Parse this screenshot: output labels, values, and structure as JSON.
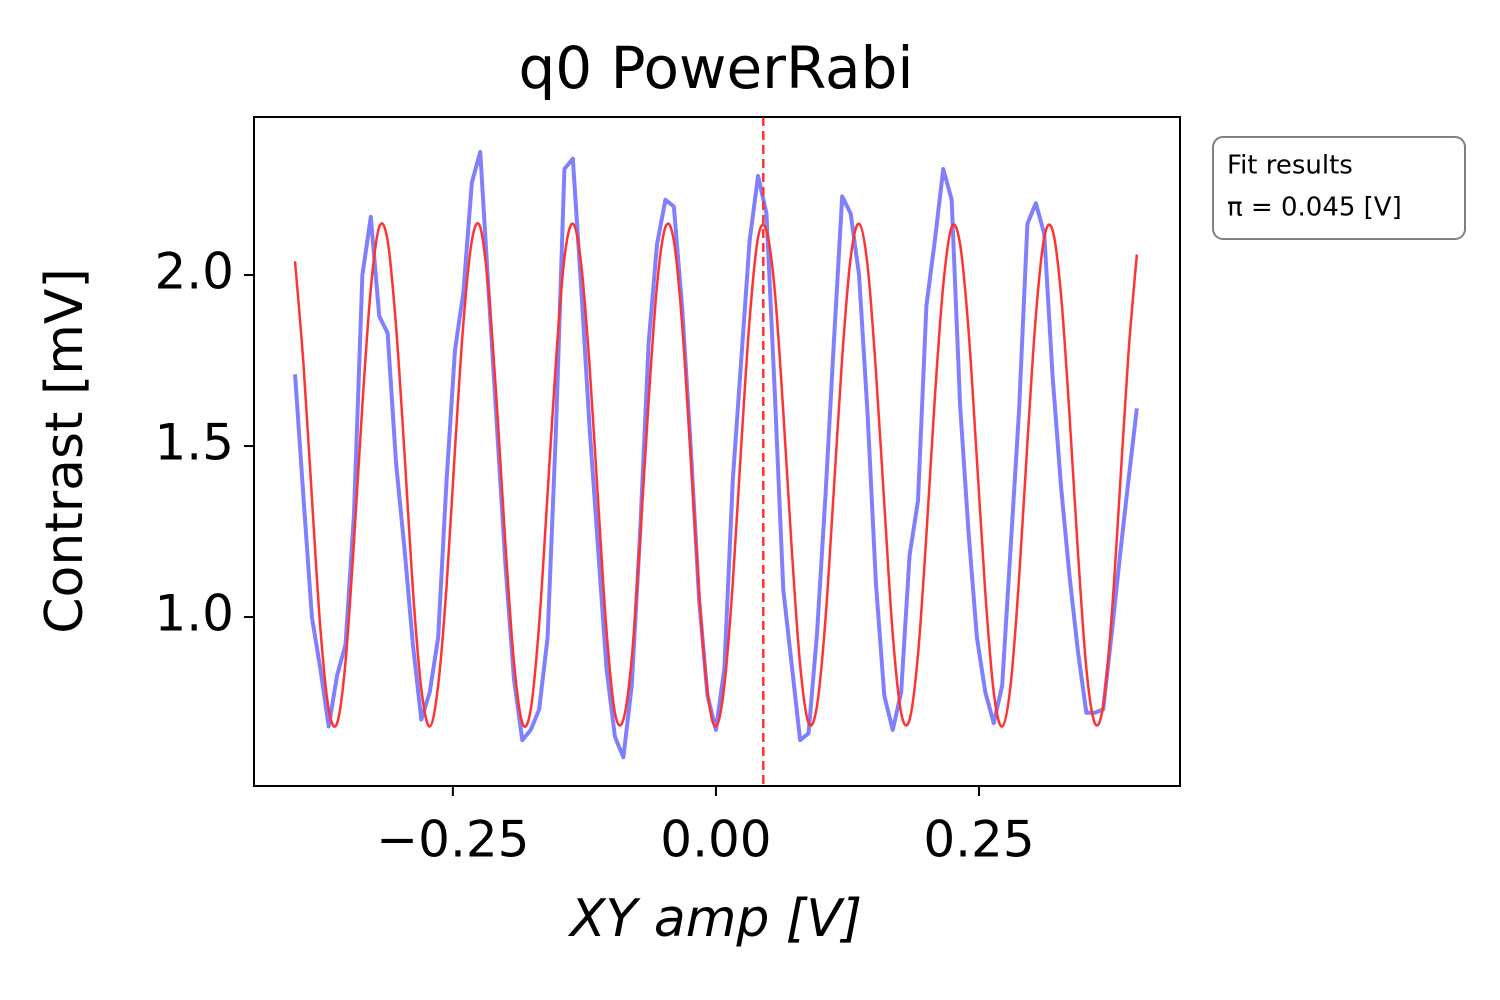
{
  "chart_data": {
    "type": "line",
    "title": "q0 PowerRabi",
    "x_label": "XY amp [V]",
    "y_label": "Contrast [mV]",
    "x": [
      -0.4,
      -0.392,
      -0.384,
      -0.376,
      -0.368,
      -0.36,
      -0.352,
      -0.344,
      -0.336,
      -0.328,
      -0.32,
      -0.312,
      -0.304,
      -0.296,
      -0.288,
      -0.28,
      -0.272,
      -0.264,
      -0.256,
      -0.248,
      -0.24,
      -0.232,
      -0.224,
      -0.216,
      -0.208,
      -0.2,
      -0.192,
      -0.184,
      -0.176,
      -0.168,
      -0.16,
      -0.152,
      -0.144,
      -0.136,
      -0.128,
      -0.12,
      -0.112,
      -0.104,
      -0.096,
      -0.088,
      -0.08,
      -0.072,
      -0.064,
      -0.056,
      -0.048,
      -0.04,
      -0.032,
      -0.024,
      -0.016,
      -0.008,
      0,
      0.008,
      0.016,
      0.024,
      0.032,
      0.04,
      0.048,
      0.056,
      0.064,
      0.072,
      0.08,
      0.088,
      0.096,
      0.104,
      0.112,
      0.12,
      0.128,
      0.136,
      0.144,
      0.152,
      0.16,
      0.168,
      0.176,
      0.184,
      0.192,
      0.2,
      0.208,
      0.216,
      0.224,
      0.232,
      0.24,
      0.248,
      0.256,
      0.264,
      0.272,
      0.28,
      0.288,
      0.296,
      0.304,
      0.312,
      0.32,
      0.328,
      0.336,
      0.344,
      0.352,
      0.36,
      0.368,
      0.376,
      0.384,
      0.392,
      0.4
    ],
    "series": [
      {
        "color": "#8080ff",
        "values": [
          1.71,
          1.35,
          1.0,
          0.85,
          0.68,
          0.83,
          0.92,
          1.3,
          2.0,
          2.17,
          1.88,
          1.83,
          1.45,
          1.2,
          0.92,
          0.7,
          0.78,
          0.94,
          1.4,
          1.78,
          1.95,
          2.27,
          2.36,
          1.95,
          1.55,
          1.15,
          0.82,
          0.64,
          0.67,
          0.73,
          0.94,
          1.55,
          2.31,
          2.34,
          1.96,
          1.55,
          1.2,
          0.85,
          0.65,
          0.59,
          0.8,
          1.25,
          1.8,
          2.09,
          2.22,
          2.2,
          1.9,
          1.5,
          1.05,
          0.77,
          0.67,
          0.85,
          1.4,
          1.75,
          2.1,
          2.29,
          2.18,
          1.65,
          1.08,
          0.86,
          0.64,
          0.66,
          0.95,
          1.35,
          1.8,
          2.23,
          2.18,
          2.0,
          1.6,
          1.1,
          0.77,
          0.67,
          0.78,
          1.18,
          1.34,
          1.91,
          2.1,
          2.31,
          2.22,
          1.62,
          1.25,
          0.94,
          0.78,
          0.69,
          0.8,
          1.2,
          1.6,
          2.15,
          2.21,
          2.12,
          1.7,
          1.38,
          1.12,
          0.9,
          0.72,
          0.72,
          0.73,
          0.95,
          1.18,
          1.4,
          1.61
        ]
      },
      {
        "color": "#ff3333",
        "values": [
          2.04,
          1.74,
          1.35,
          0.97,
          0.73,
          0.69,
          0.87,
          1.22,
          1.62,
          1.96,
          2.14,
          2.1,
          1.85,
          1.48,
          1.08,
          0.79,
          0.68,
          0.8,
          1.09,
          1.49,
          1.86,
          2.1,
          2.14,
          1.95,
          1.61,
          1.21,
          0.87,
          0.69,
          0.73,
          0.98,
          1.36,
          1.75,
          2.05,
          2.15,
          2.03,
          1.73,
          1.34,
          0.96,
          0.72,
          0.7,
          0.88,
          1.23,
          1.63,
          1.97,
          2.14,
          2.1,
          1.85,
          1.47,
          1.07,
          0.78,
          0.68,
          0.8,
          1.1,
          1.5,
          1.87,
          2.11,
          2.13,
          1.95,
          1.6,
          1.2,
          0.86,
          0.69,
          0.74,
          0.99,
          1.37,
          1.76,
          2.05,
          2.15,
          2.03,
          1.72,
          1.33,
          0.95,
          0.72,
          0.7,
          0.89,
          1.24,
          1.64,
          1.97,
          2.14,
          2.09,
          1.84,
          1.46,
          1.07,
          0.78,
          0.68,
          0.8,
          1.11,
          1.51,
          1.88,
          2.11,
          2.13,
          1.94,
          1.59,
          1.19,
          0.85,
          0.69,
          0.74,
          1.0,
          1.38,
          1.77,
          2.06
        ]
      }
    ],
    "xlim": [
      -0.439,
      0.441
    ],
    "ylim": [
      0.506,
      2.462
    ],
    "xticks": [
      {
        "value": -0.25,
        "label": "−0.25"
      },
      {
        "value": 0,
        "label": "0.00"
      },
      {
        "value": 0.25,
        "label": "0.25"
      }
    ],
    "yticks": [
      {
        "value": 1,
        "label": "1.0"
      },
      1.5,
      {
        "value": 2,
        "label": "2.0"
      }
    ],
    "annotation": {
      "title": "Fit results",
      "x": 0.045,
      "label": "π = 0.045 [V]",
      "color": "#ff3333"
    }
  }
}
